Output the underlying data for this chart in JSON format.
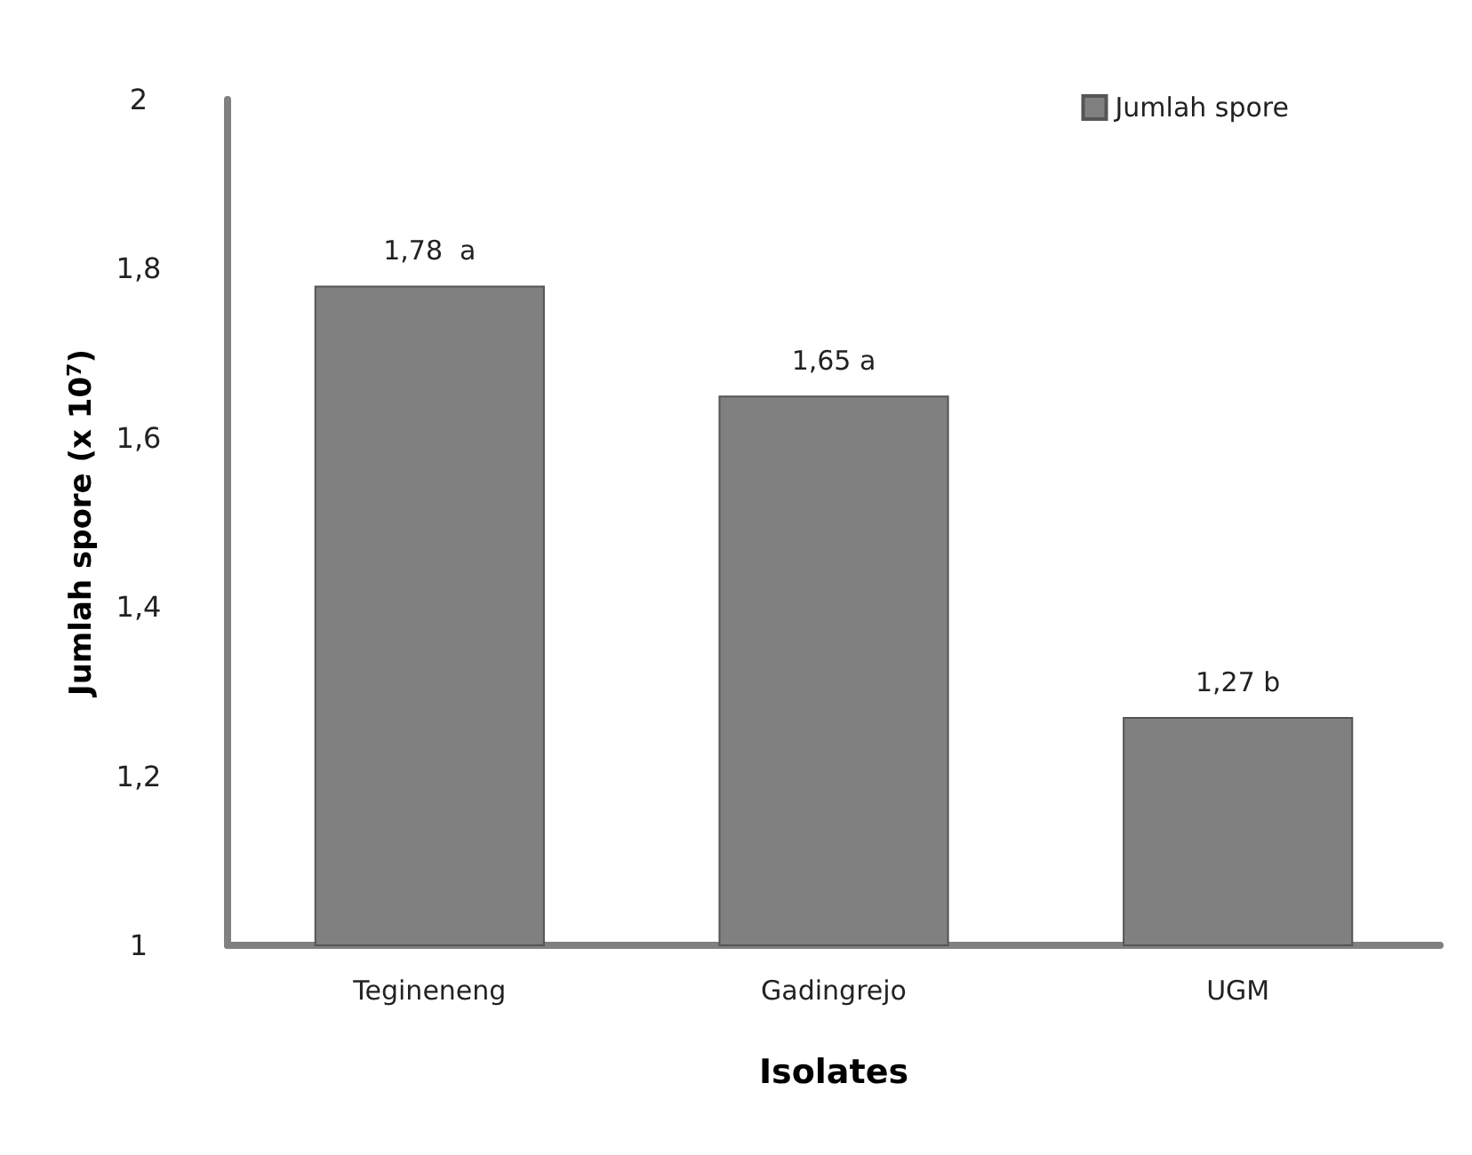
{
  "chart_data": {
    "type": "bar",
    "xlabel": "Isolates",
    "ylabel": "Jumlah spore (x 10$^{7}$)",
    "categories": [
      "Tegineneng",
      "Gadingrejo",
      "UGM"
    ],
    "series": [
      {
        "name": "Jumlah spore",
        "color": "#808080",
        "values": [
          1.78,
          1.65,
          1.27
        ],
        "value_labels": [
          "1,78  a",
          "1,65 a",
          "1,27 b"
        ]
      }
    ],
    "ylim": [
      1,
      2
    ],
    "yticks": [
      1,
      {
        "value": 1.2,
        "label": "1,2"
      },
      {
        "value": 1.4,
        "label": "1,4"
      },
      {
        "value": 1.6,
        "label": "1,6"
      },
      {
        "value": 1.8,
        "label": "1,8"
      },
      2
    ],
    "grid": false,
    "legend": "top right"
  }
}
